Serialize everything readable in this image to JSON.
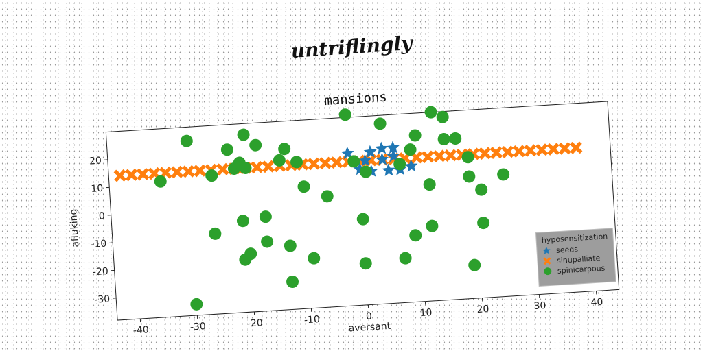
{
  "suptitle": "untriflingly",
  "chart_data": {
    "type": "scatter",
    "title": "mansions",
    "xlabel": "aversant",
    "ylabel": "afluking",
    "xlim": [
      -44,
      44
    ],
    "ylim": [
      -38,
      30
    ],
    "xticks": [
      -40,
      -30,
      -20,
      -10,
      0,
      10,
      20,
      30,
      40
    ],
    "yticks": [
      -30,
      -20,
      -10,
      0,
      10,
      20
    ],
    "grid": false,
    "legend": {
      "title": "hyposensitization",
      "placement": "lower-right",
      "entries": [
        "seeds",
        "sinupalliate",
        "spinicarpous"
      ]
    },
    "series": [
      {
        "name": "seeds",
        "marker": "star",
        "color": "#1f77b4",
        "points": [
          [
            -2,
            17
          ],
          [
            2,
            17
          ],
          [
            4,
            18
          ],
          [
            6,
            18
          ],
          [
            0,
            11
          ],
          [
            2,
            10
          ],
          [
            5,
            10
          ],
          [
            7,
            10
          ],
          [
            9,
            11
          ],
          [
            4,
            14
          ],
          [
            6,
            15
          ],
          [
            1,
            14
          ]
        ]
      },
      {
        "name": "sinupalliate",
        "marker": "x",
        "color": "#ff7f0e",
        "points": [
          [
            -42,
            14
          ],
          [
            -40,
            14
          ],
          [
            -38,
            14
          ],
          [
            -36,
            14
          ],
          [
            -34,
            14
          ],
          [
            -32,
            14
          ],
          [
            -30,
            14
          ],
          [
            -28,
            14
          ],
          [
            -26,
            14
          ],
          [
            -24,
            14
          ],
          [
            -22,
            14
          ],
          [
            -20,
            14
          ],
          [
            -18,
            14
          ],
          [
            -16,
            14
          ],
          [
            -14,
            14
          ],
          [
            -12,
            14
          ],
          [
            -10,
            14
          ],
          [
            -8,
            14
          ],
          [
            -6,
            14
          ],
          [
            -4,
            14
          ],
          [
            -2,
            14
          ],
          [
            0,
            14
          ],
          [
            2,
            14
          ],
          [
            4,
            14
          ],
          [
            6,
            14
          ],
          [
            8,
            14
          ],
          [
            10,
            14
          ],
          [
            12,
            14
          ],
          [
            14,
            14
          ],
          [
            16,
            14
          ],
          [
            18,
            14
          ],
          [
            20,
            14
          ],
          [
            22,
            14
          ],
          [
            24,
            14
          ],
          [
            26,
            14
          ],
          [
            28,
            14
          ],
          [
            30,
            14
          ],
          [
            32,
            14
          ],
          [
            34,
            14
          ],
          [
            36,
            14
          ],
          [
            38,
            14
          ]
        ]
      },
      {
        "name": "spinicarpous",
        "marker": "circle",
        "color": "#2ca02c",
        "points": [
          [
            -35,
            11
          ],
          [
            -30,
            25
          ],
          [
            -26,
            12
          ],
          [
            -22,
            14
          ],
          [
            -23,
            21
          ],
          [
            -21,
            16
          ],
          [
            -20,
            26
          ],
          [
            -20,
            14
          ],
          [
            -18,
            22
          ],
          [
            -14,
            16
          ],
          [
            -13,
            20
          ],
          [
            -11,
            15
          ],
          [
            -10,
            6
          ],
          [
            -6,
            2
          ],
          [
            -2,
            31
          ],
          [
            4,
            27
          ],
          [
            -1,
            14
          ],
          [
            1,
            10
          ],
          [
            7,
            12
          ],
          [
            9,
            17
          ],
          [
            10,
            22
          ],
          [
            12,
            4
          ],
          [
            13,
            30
          ],
          [
            15,
            28
          ],
          [
            15,
            20
          ],
          [
            17,
            20
          ],
          [
            19,
            13
          ],
          [
            19,
            6
          ],
          [
            21,
            1
          ],
          [
            25,
            6
          ],
          [
            -26,
            -9
          ],
          [
            -21,
            -5
          ],
          [
            -17,
            -4
          ],
          [
            -17,
            -13
          ],
          [
            -13,
            -15
          ],
          [
            -21,
            -19
          ],
          [
            -20,
            -17
          ],
          [
            -9,
            -20
          ],
          [
            0,
            -7
          ],
          [
            9,
            -14
          ],
          [
            12,
            -11
          ],
          [
            21,
            -11
          ],
          [
            -13,
            -28
          ],
          [
            0,
            -23
          ],
          [
            7,
            -22
          ],
          [
            19,
            -26
          ],
          [
            -30,
            -34
          ]
        ]
      }
    ]
  }
}
